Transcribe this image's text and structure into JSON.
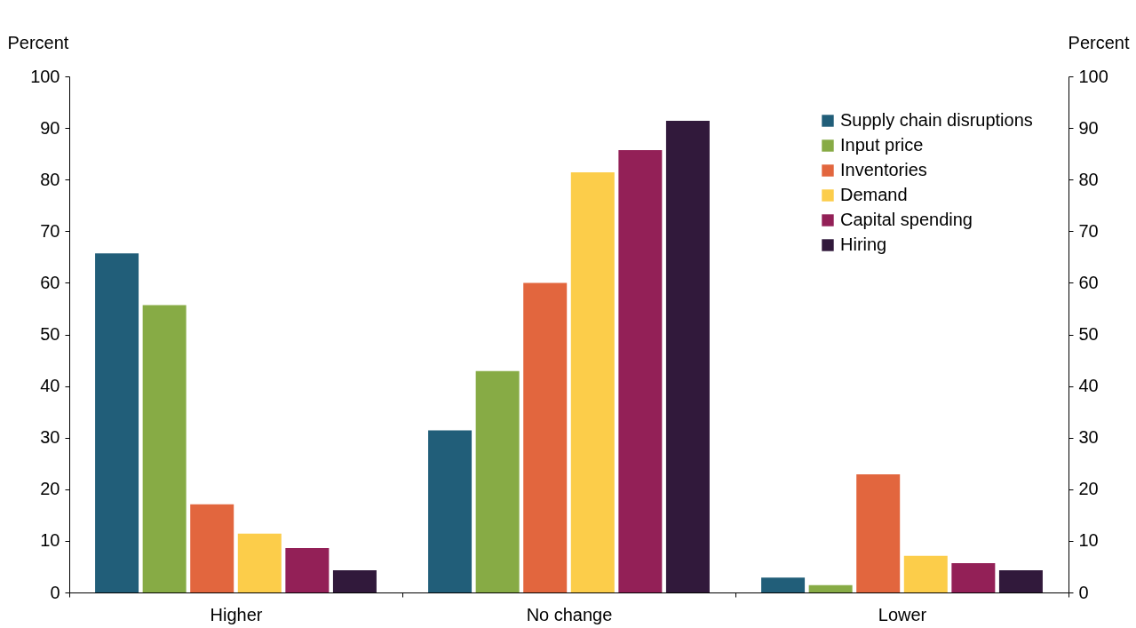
{
  "chart_data": {
    "type": "bar",
    "ylabel": "Percent",
    "y2label": "Percent",
    "categories": [
      "Higher",
      "No change",
      "Lower"
    ],
    "series": [
      {
        "name": "Supply chain disruptions",
        "color": "#215e79",
        "values": [
          65.7,
          31.4,
          2.9
        ]
      },
      {
        "name": "Input price",
        "color": "#87ab45",
        "values": [
          55.7,
          42.9,
          1.4
        ]
      },
      {
        "name": "Inventories",
        "color": "#e2663e",
        "values": [
          17.1,
          60.0,
          22.9
        ]
      },
      {
        "name": "Demand",
        "color": "#fccd4a",
        "values": [
          11.4,
          81.4,
          7.1
        ]
      },
      {
        "name": "Capital spending",
        "color": "#932057",
        "values": [
          8.6,
          85.7,
          5.7
        ]
      },
      {
        "name": "Hiring",
        "color": "#31193b",
        "values": [
          4.3,
          91.4,
          4.3
        ]
      }
    ],
    "ylim": [
      0,
      100
    ],
    "yticks": [
      0,
      10,
      20,
      30,
      40,
      50,
      60,
      70,
      80,
      90,
      100
    ],
    "y2lim": [
      0,
      100
    ],
    "y2ticks": [
      0,
      10,
      20,
      30,
      40,
      50,
      60,
      70,
      80,
      90,
      100
    ],
    "grid": false,
    "legend": "top right"
  }
}
